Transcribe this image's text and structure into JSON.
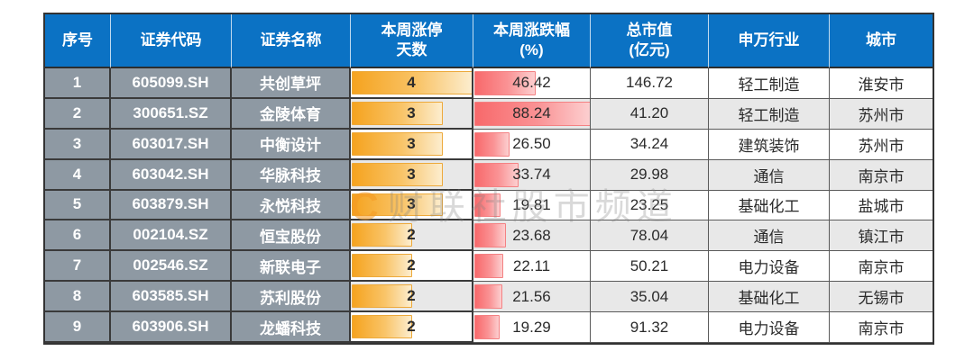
{
  "watermark": {
    "logo_letter": "C",
    "text": "财联社股市频道",
    "logo_color": "#f59a23"
  },
  "colors": {
    "header_bg": "#0b72c4",
    "header_text": "#ffffff",
    "gray_cell_bg": "#8e99a3",
    "gray_cell_text": "#ffffff",
    "stripe_bg": "#e8e8e8",
    "orange_bar": "#f5a31f",
    "orange_bar_border": "#eda93a",
    "red_bar": "#f8696b",
    "red_bar_border": "#f48183",
    "border_dark": "#3a3a3a",
    "value_text": "#2b2b2b"
  },
  "chart_data": {
    "type": "table",
    "columns": [
      {
        "key": "seq",
        "label": "序号"
      },
      {
        "key": "code",
        "label": "证券代码"
      },
      {
        "key": "name",
        "label": "证券名称"
      },
      {
        "key": "limit_days",
        "label": "本周涨停\n天数"
      },
      {
        "key": "change_pct",
        "label": "本周涨跌幅\n(%)"
      },
      {
        "key": "market_cap",
        "label": "总市值\n(亿元)"
      },
      {
        "key": "industry",
        "label": "申万行业"
      },
      {
        "key": "city",
        "label": "城市"
      }
    ],
    "bar_max": {
      "limit_days": 4,
      "change_pct": 88.24
    },
    "bar_styles": {
      "limit_days": "orange-gradient-data-bar",
      "change_pct": "red-gradient-data-bar"
    },
    "rows": [
      {
        "seq": "1",
        "code": "605099.SH",
        "name": "共创草坪",
        "limit_days": "4",
        "change_pct": "46.42",
        "market_cap": "146.72",
        "industry": "轻工制造",
        "city": "淮安市"
      },
      {
        "seq": "2",
        "code": "300651.SZ",
        "name": "金陵体育",
        "limit_days": "3",
        "change_pct": "88.24",
        "market_cap": "41.20",
        "industry": "轻工制造",
        "city": "苏州市"
      },
      {
        "seq": "3",
        "code": "603017.SH",
        "name": "中衡设计",
        "limit_days": "3",
        "change_pct": "26.50",
        "market_cap": "34.24",
        "industry": "建筑装饰",
        "city": "苏州市"
      },
      {
        "seq": "4",
        "code": "603042.SH",
        "name": "华脉科技",
        "limit_days": "3",
        "change_pct": "33.74",
        "market_cap": "29.98",
        "industry": "通信",
        "city": "南京市"
      },
      {
        "seq": "5",
        "code": "603879.SH",
        "name": "永悦科技",
        "limit_days": "3",
        "change_pct": "19.81",
        "market_cap": "23.25",
        "industry": "基础化工",
        "city": "盐城市"
      },
      {
        "seq": "6",
        "code": "002104.SZ",
        "name": "恒宝股份",
        "limit_days": "2",
        "change_pct": "23.68",
        "market_cap": "78.04",
        "industry": "通信",
        "city": "镇江市"
      },
      {
        "seq": "7",
        "code": "002546.SZ",
        "name": "新联电子",
        "limit_days": "2",
        "change_pct": "22.11",
        "market_cap": "50.21",
        "industry": "电力设备",
        "city": "南京市"
      },
      {
        "seq": "8",
        "code": "603585.SH",
        "name": "苏利股份",
        "limit_days": "2",
        "change_pct": "21.56",
        "market_cap": "35.04",
        "industry": "基础化工",
        "city": "无锡市"
      },
      {
        "seq": "9",
        "code": "603906.SH",
        "name": "龙蟠科技",
        "limit_days": "2",
        "change_pct": "19.29",
        "market_cap": "91.32",
        "industry": "电力设备",
        "city": "南京市"
      }
    ]
  }
}
